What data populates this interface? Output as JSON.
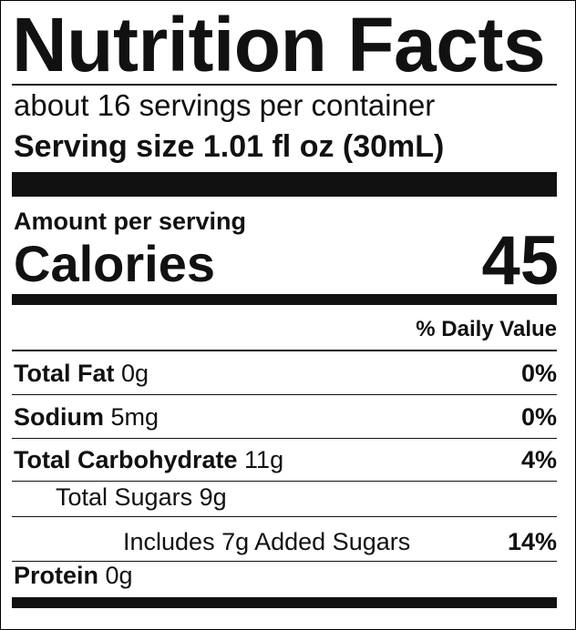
{
  "title": "Nutrition Facts",
  "servings": "about 16 servings per container",
  "serving_size": "Serving size 1.01 fl oz (30mL)",
  "amount_per_serving": "Amount per serving",
  "calories": {
    "label": "Calories",
    "value": 45
  },
  "daily_value_header": "% Daily Value",
  "nutrients": [
    {
      "name": "Total Fat",
      "amount": "0g",
      "dv": "0%"
    },
    {
      "name": "Sodium",
      "amount": "5mg",
      "dv": "0%"
    },
    {
      "name": "Total Carbohydrate",
      "amount": "11g",
      "dv": "4%"
    },
    {
      "name": "Total Sugars 9g"
    },
    {
      "name": "Includes 7g Added Sugars",
      "dv": "14%"
    },
    {
      "name": "Protein",
      "amount": "0g"
    }
  ]
}
